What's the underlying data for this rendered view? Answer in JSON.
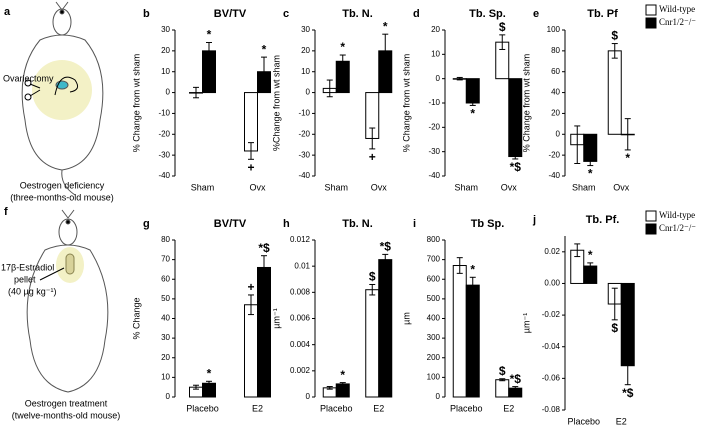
{
  "illustrations": [
    {
      "panel": "a",
      "labels": [
        "Ovariectomy"
      ],
      "caption": "Oestrogen deficiency",
      "subcaption": "(three-months-old mouse)"
    },
    {
      "panel": "f",
      "labels": [
        "17β-Estradiol",
        "pellet",
        "(40 µg kg⁻¹)"
      ],
      "caption": "Oestrogen treatment",
      "subcaption": "(twelve-months-old mouse)"
    }
  ],
  "chart_data": [
    {
      "type": "bar",
      "panel": "b",
      "title": "BV/TV",
      "y_label": "% Change from wt sham",
      "categories": [
        "Sham",
        "Ovx"
      ],
      "series": [
        {
          "name": "Wild-type",
          "color": "#ffffff",
          "values": [
            0,
            -28
          ],
          "errors": [
            2.5,
            4
          ],
          "annotations": [
            null,
            "+"
          ]
        },
        {
          "name": "Cnr1/2⁻/⁻",
          "color": "#000000",
          "values": [
            20,
            10
          ],
          "errors": [
            4,
            7
          ],
          "annotations": [
            "*",
            "*"
          ]
        }
      ],
      "ylim": [
        -40,
        30
      ],
      "yticks": [
        -40,
        -30,
        -20,
        -10,
        0,
        10,
        20,
        30
      ]
    },
    {
      "type": "bar",
      "panel": "c",
      "title": "Tb. N.",
      "y_label": "%Change from wt sham",
      "categories": [
        "Sham",
        "Ovx"
      ],
      "series": [
        {
          "name": "Wild-type",
          "color": "#ffffff",
          "values": [
            2,
            -22
          ],
          "errors": [
            4,
            5
          ],
          "annotations": [
            null,
            "+"
          ]
        },
        {
          "name": "Cnr1/2⁻/⁻",
          "color": "#000000",
          "values": [
            15,
            20
          ],
          "errors": [
            3,
            8
          ],
          "annotations": [
            "*",
            "*"
          ]
        }
      ],
      "ylim": [
        -40,
        30
      ],
      "yticks": [
        -40,
        -30,
        -20,
        -10,
        0,
        10,
        20,
        30
      ]
    },
    {
      "type": "bar",
      "panel": "d",
      "title": "Tb. Sp.",
      "y_label": "% Change from wt sham",
      "categories": [
        "Sham",
        "Ovx"
      ],
      "series": [
        {
          "name": "Wild-type",
          "color": "#ffffff",
          "values": [
            0,
            15
          ],
          "errors": [
            0.5,
            3
          ],
          "annotations": [
            null,
            "$"
          ]
        },
        {
          "name": "Cnr1/2⁻/⁻",
          "color": "#000000",
          "values": [
            -10,
            -32
          ],
          "errors": [
            1,
            1
          ],
          "annotations": [
            "*",
            "*$"
          ]
        }
      ],
      "ylim": [
        -40,
        20
      ],
      "yticks": [
        -40,
        -30,
        -20,
        -10,
        0,
        10,
        20
      ]
    },
    {
      "type": "bar",
      "panel": "e",
      "title": "Tb. Pf",
      "y_label": "% Change from wt sham",
      "categories": [
        "Sham",
        "Ovx"
      ],
      "series": [
        {
          "name": "Wild-type",
          "color": "#ffffff",
          "values": [
            -10,
            80
          ],
          "errors": [
            18,
            7
          ],
          "annotations": [
            null,
            "$"
          ]
        },
        {
          "name": "Cnr1/2⁻/⁻",
          "color": "#000000",
          "values": [
            -26,
            0
          ],
          "errors": [
            4,
            15
          ],
          "annotations": [
            "*",
            "*"
          ]
        }
      ],
      "ylim": [
        -40,
        100
      ],
      "yticks": [
        -40,
        -20,
        0,
        20,
        40,
        60,
        80,
        100
      ],
      "legend": "right"
    },
    {
      "type": "bar",
      "panel": "g",
      "title": "BV/TV",
      "y_label": "% Change",
      "categories": [
        "Placebo",
        "E2"
      ],
      "series": [
        {
          "name": "Wild-type",
          "color": "#ffffff",
          "values": [
            5,
            47
          ],
          "errors": [
            1,
            5
          ],
          "annotations": [
            null,
            "+"
          ]
        },
        {
          "name": "Cnr1/2⁻/⁻",
          "color": "#000000",
          "values": [
            7,
            66
          ],
          "errors": [
            1,
            6
          ],
          "annotations": [
            "*",
            "*$"
          ]
        }
      ],
      "ylim": [
        0,
        80
      ],
      "yticks": [
        0,
        10,
        20,
        30,
        40,
        50,
        60,
        70,
        80
      ]
    },
    {
      "type": "bar",
      "panel": "h",
      "title": "Tb. N.",
      "y_label": "µm⁻¹",
      "categories": [
        "Placebo",
        "E2"
      ],
      "series": [
        {
          "name": "Wild-type",
          "color": "#ffffff",
          "values": [
            0.0007,
            0.0082
          ],
          "errors": [
            0.0001,
            0.0004
          ],
          "annotations": [
            null,
            "$"
          ]
        },
        {
          "name": "Cnr1/2⁻/⁻",
          "color": "#000000",
          "values": [
            0.001,
            0.0105
          ],
          "errors": [
            0.0001,
            0.0004
          ],
          "annotations": [
            "*",
            "*$"
          ]
        }
      ],
      "ylim": [
        0,
        0.012
      ],
      "yticks": [
        0,
        0.002,
        0.004,
        0.006,
        0.008,
        0.01,
        0.012
      ]
    },
    {
      "type": "bar",
      "panel": "i",
      "title": "Tb Sp.",
      "y_label": "µm",
      "categories": [
        "Placebo",
        "E2"
      ],
      "series": [
        {
          "name": "Wild-type",
          "color": "#ffffff",
          "values": [
            670,
            88
          ],
          "errors": [
            40,
            5
          ],
          "annotations": [
            null,
            "$"
          ]
        },
        {
          "name": "Cnr1/2⁻/⁻",
          "color": "#000000",
          "values": [
            570,
            45
          ],
          "errors": [
            40,
            8
          ],
          "annotations": [
            "*",
            "*$"
          ]
        }
      ],
      "ylim": [
        0,
        800
      ],
      "yticks": [
        0,
        100,
        200,
        300,
        400,
        500,
        600,
        700,
        800
      ]
    },
    {
      "type": "bar",
      "panel": "j",
      "title": "Tb. Pf.",
      "y_label": "µm⁻¹",
      "categories": [
        "Placebo",
        "E2"
      ],
      "series": [
        {
          "name": "Wild-type",
          "color": "#ffffff",
          "values": [
            0.021,
            -0.013
          ],
          "errors": [
            0.004,
            0.01
          ],
          "annotations": [
            null,
            "$"
          ]
        },
        {
          "name": "Cnr1/2⁻/⁻",
          "color": "#000000",
          "values": [
            0.011,
            -0.052
          ],
          "errors": [
            0.002,
            0.012
          ],
          "annotations": [
            "*",
            "*$"
          ]
        }
      ],
      "ylim": [
        -0.08,
        0.03
      ],
      "yticks": [
        -0.08,
        -0.06,
        -0.04,
        -0.02,
        {
          "value": 0,
          "label": "0.00"
        },
        0.02
      ],
      "legend": "right"
    }
  ]
}
